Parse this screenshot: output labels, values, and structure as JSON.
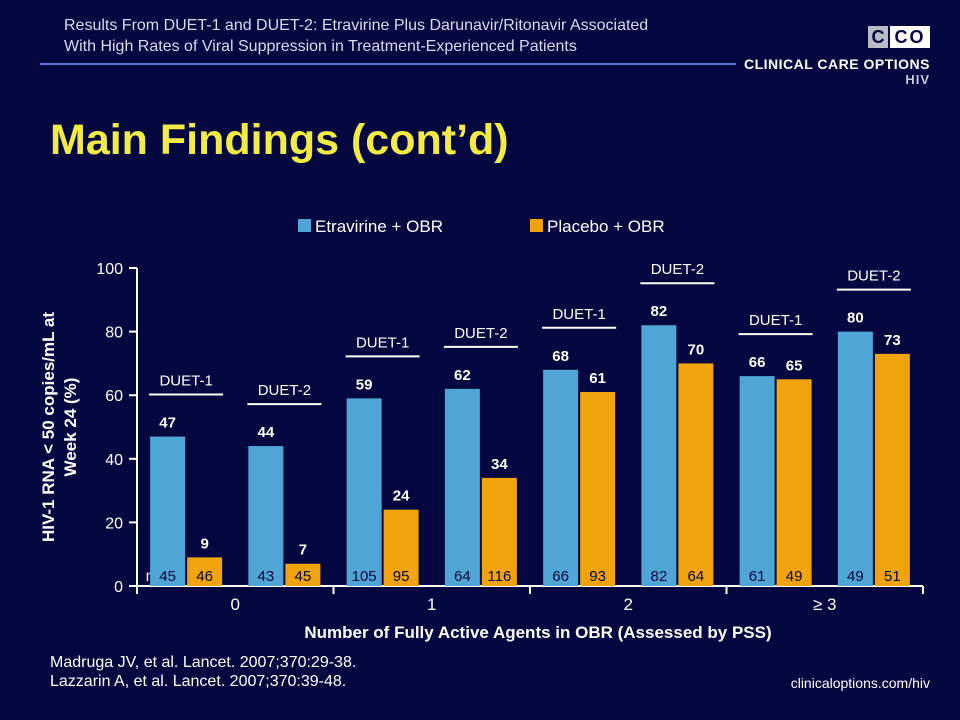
{
  "header": {
    "subtitle_line1": "Results From DUET-1 and DUET-2: Etravirine Plus Darunavir/Ritonavir Associated",
    "subtitle_line2": "With High Rates of Viral Suppression in Treatment-Experienced Patients"
  },
  "logo": {
    "mark_left": "C",
    "mark_right": "CO",
    "name": "CLINICAL CARE OPTIONS",
    "sub": "HIV"
  },
  "title": "Main Findings (cont’d)",
  "footer": {
    "ref1": "Madruga JV, et al. Lancet. 2007;370:29-38.",
    "ref2": "Lazzarin A, et al. Lancet. 2007;370:39-48.",
    "url": "clinicaloptions.com/hiv"
  },
  "colors": {
    "background": "#04063f",
    "etravirine": "#4fa6d6",
    "placebo": "#f0a30a",
    "title": "#f2ea45"
  },
  "chart_data": {
    "type": "bar",
    "ylabel_line1": "HIV-1 RNA < 50 copies/mL at",
    "ylabel_line2": "Week 24 (%)",
    "xlabel": "Number of Fully Active Agents in OBR (Assessed by PSS)",
    "ylim": [
      0,
      100
    ],
    "yticks": [
      "0",
      "20",
      "40",
      "60",
      "80",
      "100"
    ],
    "grid": false,
    "legend_position": "top",
    "n_prefix": "n =",
    "groups": [
      "0",
      "1",
      "2",
      "≥ 3"
    ],
    "subgroups": [
      "DUET-1",
      "DUET-2"
    ],
    "series": [
      {
        "name": "Etravirine + OBR",
        "values": [
          47,
          44,
          59,
          62,
          68,
          82,
          66,
          80
        ],
        "value_labels": [
          "47",
          "44",
          "59",
          "62",
          "68",
          "82",
          "66",
          "80"
        ],
        "n": [
          "45",
          "43",
          "105",
          "64",
          "66",
          "82",
          "61",
          "49"
        ]
      },
      {
        "name": "Placebo + OBR",
        "values": [
          9,
          7,
          24,
          34,
          61,
          70,
          65,
          73
        ],
        "value_labels": [
          "9",
          "7",
          "24",
          "34",
          "61",
          "70",
          "65",
          "73"
        ],
        "n": [
          "46",
          "45",
          "95",
          "116",
          "93",
          "64",
          "49",
          "51"
        ]
      }
    ]
  }
}
